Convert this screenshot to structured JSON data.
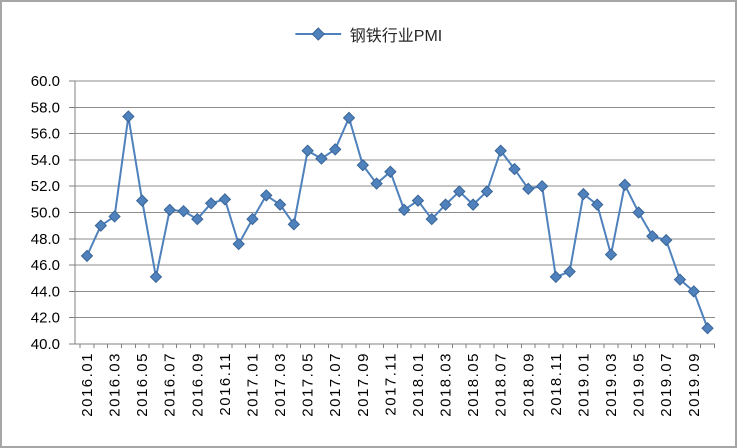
{
  "window": {
    "background": "#ffffff",
    "frame_border_color": "#a6a6a6"
  },
  "colors": {
    "line": "#4f81bd",
    "marker_fill": "#4f81bd",
    "marker_edge": "#3a6596",
    "grid": "#8c8c8c",
    "axis": "#808080",
    "tick": "#808080",
    "text": "#000000"
  },
  "chart_data": {
    "type": "line",
    "title": "",
    "legend_position": "top-center",
    "grid": "horizontal",
    "marker": "diamond",
    "ylim": [
      40.0,
      60.0
    ],
    "y_step": 2.0,
    "y_tick_labels": [
      "60.0",
      "58.0",
      "56.0",
      "54.0",
      "52.0",
      "50.0",
      "48.0",
      "46.0",
      "44.0",
      "42.0",
      "40.0"
    ],
    "x_tick_labels": [
      "2016.01",
      "2016.03",
      "2016.05",
      "2016.07",
      "2016.09",
      "2016.11",
      "2017.01",
      "2017.03",
      "2017.05",
      "2017.07",
      "2017.09",
      "2017.11",
      "2018.01",
      "2018.03",
      "2018.05",
      "2018.07",
      "2018.09",
      "2018.11",
      "2019.01",
      "2019.03",
      "2019.05",
      "2019.07",
      "2019.09"
    ],
    "categories": [
      "2016.01",
      "2016.02",
      "2016.03",
      "2016.04",
      "2016.05",
      "2016.06",
      "2016.07",
      "2016.08",
      "2016.09",
      "2016.10",
      "2016.11",
      "2016.12",
      "2017.01",
      "2017.02",
      "2017.03",
      "2017.04",
      "2017.05",
      "2017.06",
      "2017.07",
      "2017.08",
      "2017.09",
      "2017.10",
      "2017.11",
      "2017.12",
      "2018.01",
      "2018.02",
      "2018.03",
      "2018.04",
      "2018.05",
      "2018.06",
      "2018.07",
      "2018.08",
      "2018.09",
      "2018.10",
      "2018.11",
      "2018.12",
      "2019.01",
      "2019.02",
      "2019.03",
      "2019.04",
      "2019.05",
      "2019.06",
      "2019.07",
      "2019.08",
      "2019.09",
      "2019.10"
    ],
    "series": [
      {
        "name": "钢铁行业PMI",
        "color": "#4f81bd",
        "values": [
          46.7,
          49.0,
          49.7,
          57.3,
          50.9,
          45.1,
          50.2,
          50.1,
          49.5,
          50.7,
          51.0,
          47.6,
          49.5,
          51.3,
          50.6,
          49.1,
          54.7,
          54.1,
          54.8,
          57.2,
          53.6,
          52.2,
          53.1,
          50.2,
          50.9,
          49.5,
          50.6,
          51.6,
          50.6,
          51.6,
          54.7,
          53.3,
          51.8,
          52.0,
          45.1,
          45.5,
          51.4,
          50.6,
          46.8,
          52.1,
          50.0,
          48.2,
          47.9,
          44.9,
          44.0,
          41.2
        ]
      }
    ]
  }
}
